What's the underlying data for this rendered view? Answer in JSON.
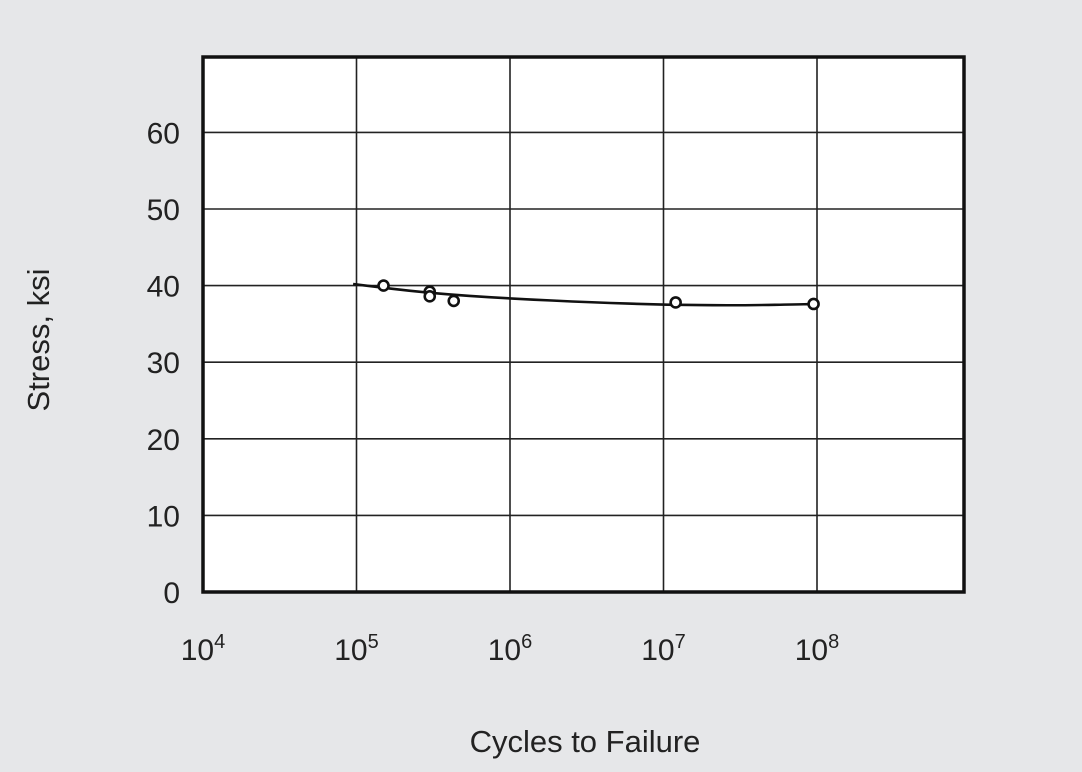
{
  "chart_data": {
    "type": "scatter",
    "xlabel": "Cycles to Failure",
    "ylabel": "Stress, ksi",
    "x_scale": "log",
    "xlim": [
      10000,
      1000000000
    ],
    "ylim": [
      0,
      70
    ],
    "grid": true,
    "x_ticks": [
      {
        "value": 10000,
        "base": "10",
        "exp": "4"
      },
      {
        "value": 100000,
        "base": "10",
        "exp": "5"
      },
      {
        "value": 1000000,
        "base": "10",
        "exp": "6"
      },
      {
        "value": 10000000,
        "base": "10",
        "exp": "7"
      },
      {
        "value": 100000000,
        "base": "10",
        "exp": "8"
      }
    ],
    "y_ticks": [
      0,
      10,
      20,
      30,
      40,
      50,
      60
    ],
    "series": [
      {
        "points": [
          {
            "x": 150000,
            "y": 40.0
          },
          {
            "x": 300000,
            "y": 39.2
          },
          {
            "x": 300000,
            "y": 38.6
          },
          {
            "x": 430000,
            "y": 38.0
          },
          {
            "x": 12000000,
            "y": 37.8
          },
          {
            "x": 95000000,
            "y": 37.6
          }
        ],
        "fit_curve": [
          {
            "x": 95000,
            "y": 40.2
          },
          {
            "x": 300000,
            "y": 39.0
          },
          {
            "x": 1000000,
            "y": 38.3
          },
          {
            "x": 3500000,
            "y": 37.8
          },
          {
            "x": 10000000,
            "y": 37.5
          },
          {
            "x": 30000000,
            "y": 37.4
          },
          {
            "x": 95000000,
            "y": 37.6
          }
        ]
      }
    ]
  }
}
